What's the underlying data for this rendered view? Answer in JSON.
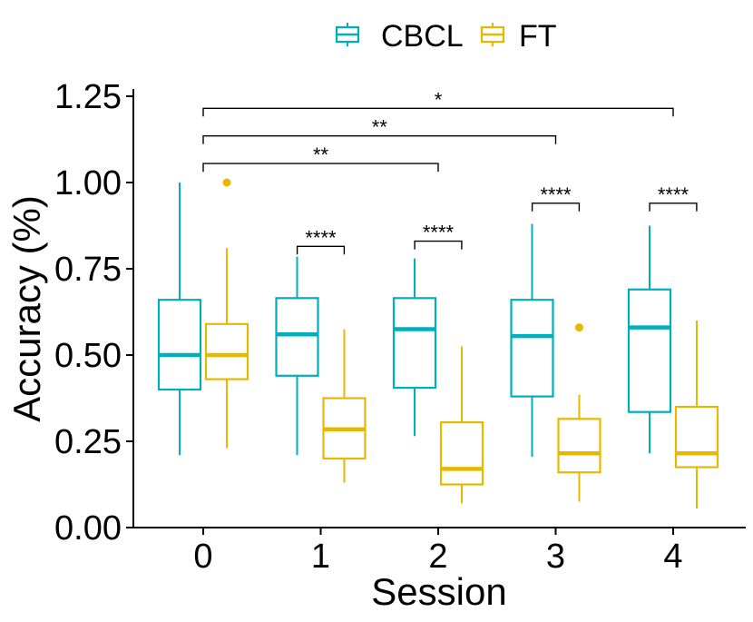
{
  "chart_data": {
    "type": "box",
    "title": "",
    "xlabel": "Session",
    "ylabel": "Accuracy (%)",
    "ylim": [
      0,
      1.28
    ],
    "xlim": [
      -0.6,
      4.6
    ],
    "y_ticks": [
      0.0,
      0.25,
      0.5,
      0.75,
      1.0,
      1.25
    ],
    "y_tick_labels": [
      "0.00",
      "0.25",
      "0.50",
      "0.75",
      "1.00",
      "1.25"
    ],
    "categories": [
      "0",
      "1",
      "2",
      "3",
      "4"
    ],
    "legend": {
      "position": "top",
      "entries": [
        "CBCL",
        "FT"
      ]
    },
    "colors": {
      "CBCL": "#00AFBB",
      "FT": "#E7B800"
    },
    "series": [
      {
        "name": "CBCL",
        "boxes": [
          {
            "session": "0",
            "whisker_low": 0.21,
            "q1": 0.4,
            "median": 0.5,
            "q3": 0.66,
            "whisker_high": 1.0,
            "outliers": []
          },
          {
            "session": "1",
            "whisker_low": 0.21,
            "q1": 0.44,
            "median": 0.56,
            "q3": 0.665,
            "whisker_high": 0.785,
            "outliers": []
          },
          {
            "session": "2",
            "whisker_low": 0.265,
            "q1": 0.405,
            "median": 0.575,
            "q3": 0.665,
            "whisker_high": 0.78,
            "outliers": []
          },
          {
            "session": "3",
            "whisker_low": 0.205,
            "q1": 0.38,
            "median": 0.555,
            "q3": 0.66,
            "whisker_high": 0.88,
            "outliers": []
          },
          {
            "session": "4",
            "whisker_low": 0.215,
            "q1": 0.335,
            "median": 0.58,
            "q3": 0.69,
            "whisker_high": 0.875,
            "outliers": []
          }
        ]
      },
      {
        "name": "FT",
        "boxes": [
          {
            "session": "0",
            "whisker_low": 0.23,
            "q1": 0.43,
            "median": 0.5,
            "q3": 0.59,
            "whisker_high": 0.81,
            "outliers": [
              1.0
            ]
          },
          {
            "session": "1",
            "whisker_low": 0.13,
            "q1": 0.2,
            "median": 0.285,
            "q3": 0.375,
            "whisker_high": 0.575,
            "outliers": []
          },
          {
            "session": "2",
            "whisker_low": 0.07,
            "q1": 0.125,
            "median": 0.17,
            "q3": 0.305,
            "whisker_high": 0.525,
            "outliers": []
          },
          {
            "session": "3",
            "whisker_low": 0.075,
            "q1": 0.16,
            "median": 0.215,
            "q3": 0.315,
            "whisker_high": 0.385,
            "outliers": [
              0.58
            ]
          },
          {
            "session": "4",
            "whisker_low": 0.055,
            "q1": 0.175,
            "median": 0.215,
            "q3": 0.35,
            "whisker_high": 0.6,
            "outliers": []
          }
        ]
      }
    ],
    "annotations": [
      {
        "type": "bracket",
        "x1": 0,
        "x2": 4,
        "y": 1.215,
        "label": "*"
      },
      {
        "type": "bracket",
        "x1": 0,
        "x2": 3,
        "y": 1.135,
        "label": "**"
      },
      {
        "type": "bracket",
        "x1": 0,
        "x2": 2,
        "y": 1.055,
        "label": "**"
      },
      {
        "type": "bracket",
        "x1": 0.8,
        "x2": 1.2,
        "y": 0.815,
        "label": "****"
      },
      {
        "type": "bracket",
        "x1": 1.8,
        "x2": 2.2,
        "y": 0.83,
        "label": "****"
      },
      {
        "type": "bracket",
        "x1": 2.8,
        "x2": 3.2,
        "y": 0.94,
        "label": "****"
      },
      {
        "type": "bracket",
        "x1": 3.8,
        "x2": 4.2,
        "y": 0.94,
        "label": "****"
      }
    ]
  }
}
